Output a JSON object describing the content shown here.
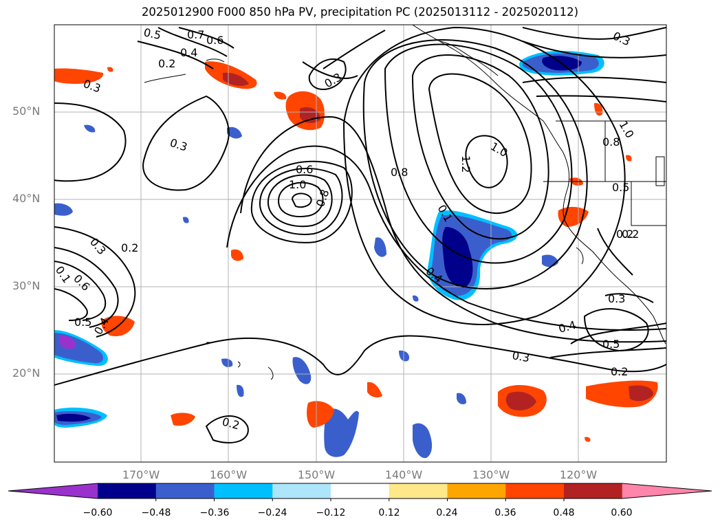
{
  "title": "2025012900 F000 850 hPa PV, precipitation PC (2025013112 - 2025020112)",
  "lat_labels": [
    "50°N",
    "40°N",
    "30°N",
    "20°N"
  ],
  "lon_labels": [
    "170°W",
    "160°W",
    "150°W",
    "140°W",
    "130°W",
    "120°W"
  ],
  "colorbar": {
    "ticks": [
      "−0.60",
      "−0.48",
      "−0.36",
      "−0.24",
      "−0.12",
      "0.12",
      "0.24",
      "0.36",
      "0.48",
      "0.60"
    ],
    "colors": [
      "#9932cc",
      "#00008b",
      "#3a5fcd",
      "#00bfff",
      "#ade5fb",
      "#ffffff",
      "#ffe88a",
      "#ffa500",
      "#ff4500",
      "#b22222",
      "#ff85aa"
    ]
  },
  "contour_labels": [
    "0.5",
    "0.7",
    "0.6",
    "0.4",
    "0.2",
    "0.3",
    "0.3",
    "0.3",
    "0.6",
    "1.0",
    "0.8",
    "0.8",
    "1.0",
    "1.2",
    "0.1",
    "0.4",
    "0.3",
    "0.2",
    "0.1",
    "0.6",
    "0.5",
    "0.4",
    "0.3",
    "0.2",
    "0.2",
    "0.8",
    "1.0",
    "0.5",
    "0.2",
    "0.3",
    "0.4",
    "0.5",
    "0.3",
    "0.2",
    "0.2",
    "0.3"
  ]
}
